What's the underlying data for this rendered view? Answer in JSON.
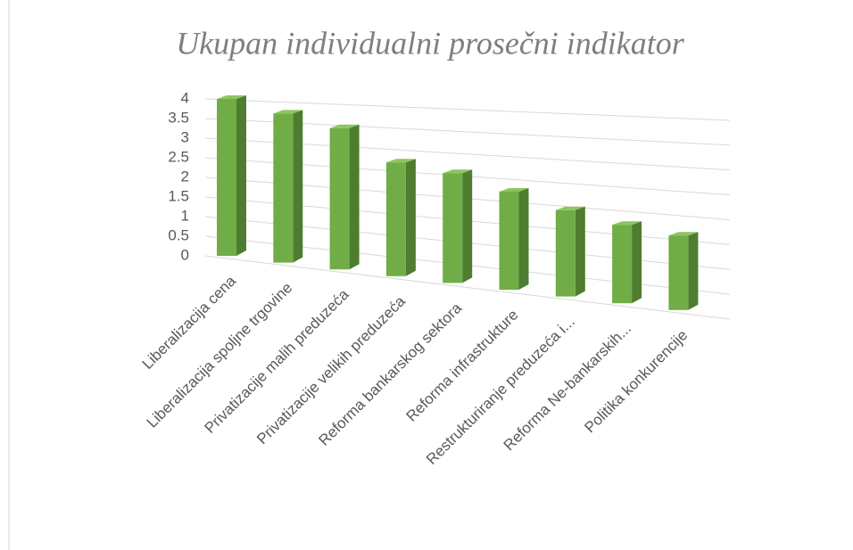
{
  "chart_data": {
    "type": "bar3d",
    "title": "Ukupan individualni prosečni indikator",
    "categories": [
      "Liberalizacija cena",
      "Liberalizacija spoljne trgovine",
      "Privatizacije malih preduzeća",
      "Privatizacije velikih preduzeća",
      "Reforma bankarskog sektora",
      "Reforma infrastrukture",
      "Restrukturiranje preduzeća i...",
      "Reforma Ne-bankarskih...",
      "Politika konkurencije"
    ],
    "values": [
      4.0,
      3.8,
      3.6,
      2.9,
      2.8,
      2.5,
      2.2,
      2.0,
      1.9
    ],
    "color": "#70ad47",
    "side_color": "#4e7d2f",
    "top_color": "#8bc65f",
    "ylim": [
      0,
      4
    ],
    "yticks": [
      0,
      0.5,
      1,
      1.5,
      2,
      2.5,
      3,
      3.5,
      4
    ],
    "grid": true
  }
}
